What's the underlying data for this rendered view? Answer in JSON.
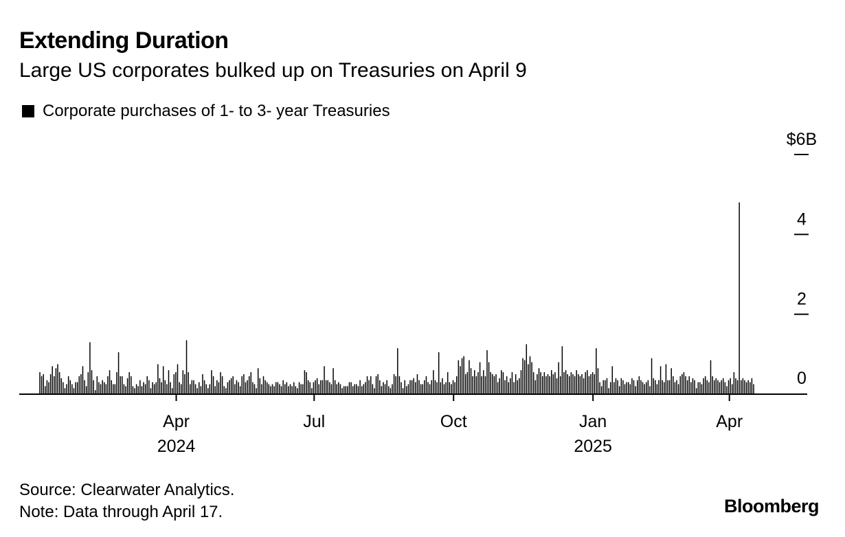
{
  "header": {
    "title": "Extending Duration",
    "subtitle": "Large US corporates bulked up on Treasuries on April 9"
  },
  "footer": {
    "source": "Source: Clearwater Analytics.",
    "note": "Note: Data through April 17.",
    "brand": "Bloomberg"
  },
  "chart_data": {
    "type": "bar",
    "title": "Extending Duration",
    "subtitle": "Large US corporates bulked up on Treasuries on April 9",
    "series": [
      {
        "name": "Corporate purchases of 1- to 3- year Treasuries",
        "color": "#000000",
        "x_start": "2024-01-02",
        "x_end": "2025-04-17",
        "values": [
          0.55,
          0.45,
          0.5,
          0.2,
          0.35,
          0.3,
          0.5,
          0.7,
          0.45,
          0.65,
          0.75,
          0.55,
          0.4,
          0.3,
          0.15,
          0.25,
          0.45,
          0.35,
          0.25,
          0.15,
          0.3,
          0.3,
          0.45,
          0.5,
          0.7,
          0.35,
          0.2,
          0.55,
          1.3,
          0.6,
          0.35,
          0.1,
          0.45,
          0.3,
          0.25,
          0.35,
          0.3,
          0.25,
          0.45,
          0.6,
          0.35,
          0.25,
          0.25,
          0.55,
          1.05,
          0.45,
          0.45,
          0.25,
          0.2,
          0.4,
          0.55,
          0.45,
          0.2,
          0.15,
          0.25,
          0.2,
          0.35,
          0.2,
          0.3,
          0.25,
          0.45,
          0.35,
          0.15,
          0.3,
          0.25,
          0.3,
          0.75,
          0.4,
          0.3,
          0.7,
          0.35,
          0.25,
          0.6,
          0.3,
          0.15,
          0.5,
          0.55,
          0.75,
          0.3,
          0.25,
          0.6,
          0.5,
          1.35,
          0.55,
          0.25,
          0.35,
          0.35,
          0.25,
          0.15,
          0.3,
          0.2,
          0.5,
          0.35,
          0.25,
          0.15,
          0.25,
          0.6,
          0.45,
          0.2,
          0.35,
          0.3,
          0.55,
          0.45,
          0.2,
          0.15,
          0.3,
          0.35,
          0.4,
          0.45,
          0.25,
          0.35,
          0.3,
          0.2,
          0.45,
          0.5,
          0.3,
          0.35,
          0.45,
          0.55,
          0.3,
          0.25,
          0.15,
          0.65,
          0.4,
          0.25,
          0.45,
          0.35,
          0.3,
          0.25,
          0.2,
          0.25,
          0.2,
          0.3,
          0.3,
          0.25,
          0.2,
          0.35,
          0.25,
          0.3,
          0.2,
          0.25,
          0.2,
          0.3,
          0.2,
          0.15,
          0.3,
          0.25,
          0.25,
          0.6,
          0.55,
          0.35,
          0.3,
          0.15,
          0.3,
          0.35,
          0.4,
          0.25,
          0.35,
          0.35,
          0.7,
          0.35,
          0.35,
          0.3,
          0.25,
          0.65,
          0.35,
          0.25,
          0.3,
          0.25,
          0.15,
          0.2,
          0.2,
          0.2,
          0.3,
          0.3,
          0.2,
          0.25,
          0.25,
          0.2,
          0.35,
          0.2,
          0.25,
          0.3,
          0.45,
          0.35,
          0.45,
          0.25,
          0.15,
          0.45,
          0.5,
          0.35,
          0.2,
          0.3,
          0.25,
          0.35,
          0.2,
          0.15,
          0.25,
          0.5,
          0.45,
          1.15,
          0.45,
          0.3,
          0.15,
          0.35,
          0.2,
          0.25,
          0.35,
          0.35,
          0.4,
          0.3,
          0.5,
          0.35,
          0.25,
          0.25,
          0.35,
          0.45,
          0.3,
          0.25,
          0.35,
          0.6,
          0.35,
          0.3,
          1.05,
          0.3,
          0.4,
          0.25,
          0.3,
          0.55,
          0.3,
          0.25,
          0.35,
          0.3,
          0.45,
          0.85,
          0.7,
          0.9,
          0.95,
          0.5,
          0.55,
          0.85,
          0.65,
          0.45,
          0.6,
          0.45,
          0.55,
          0.8,
          0.45,
          0.6,
          0.45,
          1.1,
          0.8,
          0.55,
          0.5,
          0.45,
          0.5,
          0.3,
          0.4,
          0.6,
          0.55,
          0.35,
          0.45,
          0.3,
          0.4,
          0.55,
          0.3,
          0.5,
          0.35,
          0.4,
          0.6,
          0.9,
          0.85,
          1.25,
          0.75,
          0.95,
          0.8,
          0.55,
          0.35,
          0.5,
          0.65,
          0.55,
          0.45,
          0.55,
          0.45,
          0.5,
          0.45,
          0.6,
          0.5,
          0.55,
          0.4,
          0.8,
          0.45,
          1.2,
          0.55,
          0.6,
          0.5,
          0.45,
          0.55,
          0.5,
          0.45,
          0.6,
          0.5,
          0.45,
          0.5,
          0.4,
          0.55,
          0.6,
          0.45,
          0.5,
          0.55,
          0.5,
          1.15,
          0.65,
          0.3,
          0.2,
          0.35,
          0.35,
          0.4,
          0.15,
          0.3,
          0.7,
          0.3,
          0.4,
          0.35,
          0.2,
          0.4,
          0.35,
          0.25,
          0.3,
          0.3,
          0.25,
          0.4,
          0.35,
          0.2,
          0.35,
          0.45,
          0.35,
          0.3,
          0.25,
          0.3,
          0.35,
          0.2,
          0.9,
          0.4,
          0.35,
          0.25,
          0.35,
          0.7,
          0.35,
          0.3,
          0.75,
          0.35,
          0.35,
          0.65,
          0.45,
          0.3,
          0.35,
          0.25,
          0.45,
          0.5,
          0.55,
          0.45,
          0.35,
          0.45,
          0.3,
          0.4,
          0.35,
          0.15,
          0.3,
          0.3,
          0.25,
          0.4,
          0.45,
          0.35,
          0.3,
          0.85,
          0.45,
          0.35,
          0.4,
          0.35,
          0.3,
          0.35,
          0.4,
          0.3,
          0.2,
          0.35,
          0.4,
          0.25,
          0.55,
          0.4,
          0.35,
          4.8,
          0.35,
          0.4,
          0.35,
          0.3,
          0.35,
          0.3,
          0.4,
          0.25
        ]
      }
    ],
    "legend": "Corporate purchases of 1- to 3- year Treasuries",
    "legend_position": "top-left",
    "y_tick_labels": [
      "0",
      "2",
      "4",
      "$6B"
    ],
    "y_ticks": [
      0,
      2,
      4,
      6
    ],
    "ylim": [
      0,
      6
    ],
    "y_axis_side": "right",
    "x_ticks": [
      {
        "date": "2024-04-01",
        "label": "Apr",
        "year": "2024"
      },
      {
        "date": "2024-07-01",
        "label": "Jul",
        "year": ""
      },
      {
        "date": "2024-10-01",
        "label": "Oct",
        "year": ""
      },
      {
        "date": "2025-01-01",
        "label": "Jan",
        "year": "2025"
      },
      {
        "date": "2025-04-01",
        "label": "Apr",
        "year": ""
      }
    ],
    "grid": false,
    "units": "Billions of USD"
  }
}
